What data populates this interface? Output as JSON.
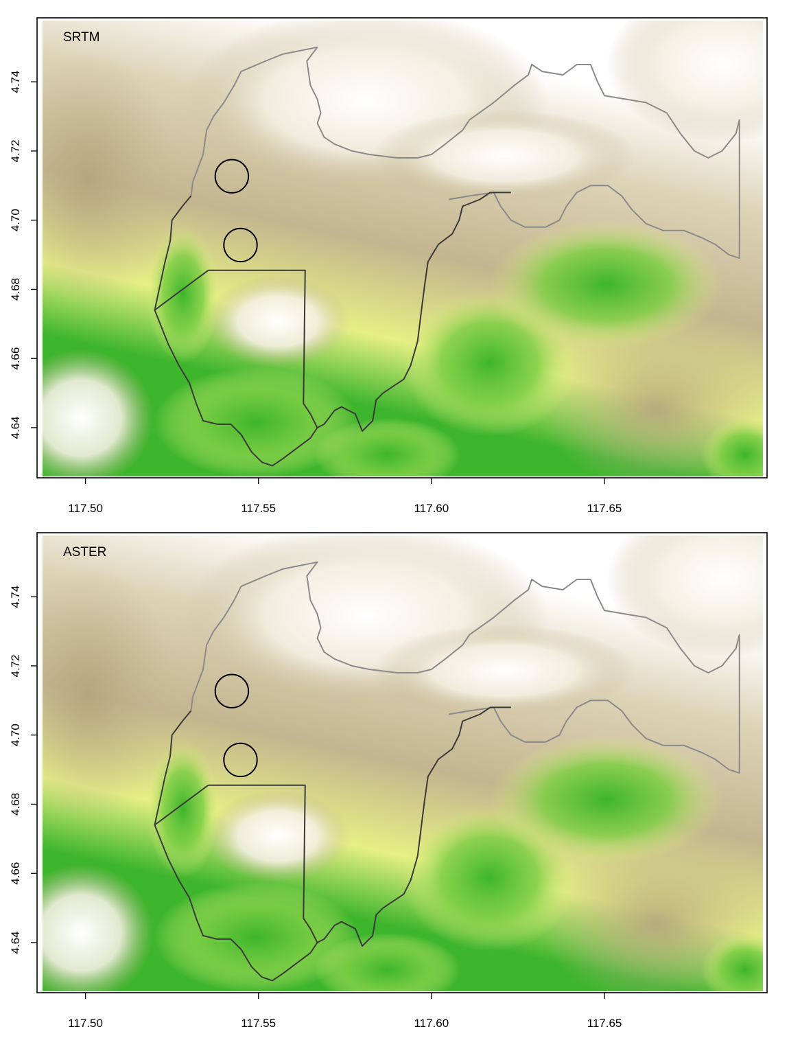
{
  "figure": {
    "panels": [
      {
        "id": "srtm",
        "label": "SRTM",
        "xlim": [
          117.486,
          117.697
        ],
        "ylim": [
          4.6255,
          4.7585
        ],
        "x_ticks": [
          {
            "value": 117.5,
            "label": "117.50"
          },
          {
            "value": 117.55,
            "label": "117.55"
          },
          {
            "value": 117.6,
            "label": "117.60"
          },
          {
            "value": 117.65,
            "label": "117.65"
          }
        ],
        "y_ticks": [
          {
            "value": 4.64,
            "label": "4.64"
          },
          {
            "value": 4.66,
            "label": "4.66"
          },
          {
            "value": 4.68,
            "label": "4.68"
          },
          {
            "value": 4.7,
            "label": "4.70"
          },
          {
            "value": 4.72,
            "label": "4.72"
          },
          {
            "value": 4.74,
            "label": "4.74"
          }
        ]
      },
      {
        "id": "aster",
        "label": "ASTER",
        "xlim": [
          117.486,
          117.697
        ],
        "ylim": [
          4.6255,
          4.7585
        ],
        "x_ticks": [
          {
            "value": 117.5,
            "label": "117.50"
          },
          {
            "value": 117.55,
            "label": "117.55"
          },
          {
            "value": 117.6,
            "label": "117.60"
          },
          {
            "value": 117.65,
            "label": "117.65"
          }
        ],
        "y_ticks": [
          {
            "value": 4.64,
            "label": "4.64"
          },
          {
            "value": 4.66,
            "label": "4.66"
          },
          {
            "value": 4.68,
            "label": "4.68"
          },
          {
            "value": 4.7,
            "label": "4.70"
          },
          {
            "value": 4.72,
            "label": "4.72"
          },
          {
            "value": 4.74,
            "label": "4.74"
          }
        ]
      }
    ],
    "colors": {
      "high": "#ffffff",
      "mid_high": "#c3b58f",
      "mid": "#e6ef84",
      "low": "#3db52c",
      "boundary_upper": "#8a8a8a",
      "boundary_lower": "#3a3a3a",
      "circle": "#000000"
    },
    "circles": [
      {
        "x": 117.5423,
        "y": 4.7127,
        "r": 0.0048
      },
      {
        "x": 117.5448,
        "y": 4.6928,
        "r": 0.0048
      }
    ],
    "boundary_upper": [
      [
        117.5305,
        4.707
      ],
      [
        117.531,
        4.711
      ],
      [
        117.534,
        4.719
      ],
      [
        117.535,
        4.726
      ],
      [
        117.537,
        4.73
      ],
      [
        117.54,
        4.734
      ],
      [
        117.543,
        4.739
      ],
      [
        117.545,
        4.743
      ],
      [
        117.552,
        4.746
      ],
      [
        117.557,
        4.748
      ],
      [
        117.567,
        4.75
      ],
      [
        117.564,
        4.746
      ],
      [
        117.565,
        4.739
      ],
      [
        117.567,
        4.735
      ],
      [
        117.568,
        4.731
      ],
      [
        117.567,
        4.728
      ],
      [
        117.569,
        4.724
      ],
      [
        117.572,
        4.722
      ],
      [
        117.577,
        4.72
      ],
      [
        117.582,
        4.719
      ],
      [
        117.59,
        4.718
      ],
      [
        117.596,
        4.718
      ],
      [
        117.6,
        4.719
      ],
      [
        117.604,
        4.722
      ],
      [
        117.609,
        4.726
      ],
      [
        117.611,
        4.729
      ],
      [
        117.618,
        4.734
      ],
      [
        117.624,
        4.739
      ],
      [
        117.628,
        4.742
      ],
      [
        117.629,
        4.745
      ],
      [
        117.632,
        4.743
      ],
      [
        117.638,
        4.742
      ],
      [
        117.642,
        4.745
      ],
      [
        117.646,
        4.745
      ],
      [
        117.648,
        4.74
      ],
      [
        117.65,
        4.736
      ],
      [
        117.656,
        4.735
      ],
      [
        117.662,
        4.734
      ],
      [
        117.668,
        4.731
      ],
      [
        117.672,
        4.725
      ],
      [
        117.676,
        4.72
      ],
      [
        117.68,
        4.718
      ],
      [
        117.684,
        4.72
      ],
      [
        117.688,
        4.725
      ],
      [
        117.689,
        4.729
      ],
      [
        117.689,
        4.711
      ],
      [
        117.689,
        4.689
      ],
      [
        117.686,
        4.69
      ],
      [
        117.682,
        4.693
      ],
      [
        117.678,
        4.695
      ],
      [
        117.673,
        4.697
      ],
      [
        117.667,
        4.697
      ],
      [
        117.662,
        4.699
      ],
      [
        117.658,
        4.703
      ],
      [
        117.655,
        4.707
      ],
      [
        117.651,
        4.71
      ],
      [
        117.646,
        4.71
      ],
      [
        117.642,
        4.708
      ],
      [
        117.639,
        4.704
      ],
      [
        117.637,
        4.7
      ],
      [
        117.633,
        4.698
      ],
      [
        117.627,
        4.698
      ],
      [
        117.623,
        4.7
      ],
      [
        117.62,
        4.704
      ],
      [
        117.618,
        4.708
      ],
      [
        117.611,
        4.707
      ],
      [
        117.605,
        4.706
      ]
    ],
    "boundary_lower": [
      [
        117.5355,
        4.6855
      ],
      [
        117.5635,
        4.6855
      ],
      [
        117.563,
        4.647
      ],
      [
        117.565,
        4.644
      ],
      [
        117.567,
        4.64
      ],
      [
        117.569,
        4.641
      ],
      [
        117.572,
        4.645
      ],
      [
        117.574,
        4.646
      ],
      [
        117.578,
        4.644
      ],
      [
        117.58,
        4.639
      ],
      [
        117.583,
        4.642
      ],
      [
        117.584,
        4.648
      ],
      [
        117.586,
        4.65
      ],
      [
        117.592,
        4.654
      ],
      [
        117.594,
        4.658
      ],
      [
        117.596,
        4.665
      ],
      [
        117.597,
        4.673
      ],
      [
        117.598,
        4.681
      ],
      [
        117.599,
        4.688
      ],
      [
        117.602,
        4.693
      ],
      [
        117.606,
        4.696
      ],
      [
        117.608,
        4.7
      ],
      [
        117.609,
        4.704
      ],
      [
        117.614,
        4.706
      ],
      [
        117.617,
        4.708
      ],
      [
        117.623,
        4.708
      ]
    ],
    "boundary_left": [
      [
        117.5305,
        4.707
      ],
      [
        117.528,
        4.704
      ],
      [
        117.525,
        4.7
      ],
      [
        117.5245,
        4.694
      ],
      [
        117.523,
        4.688
      ],
      [
        117.52,
        4.674
      ],
      [
        117.522,
        4.669
      ],
      [
        117.524,
        4.664
      ],
      [
        117.527,
        4.658
      ],
      [
        117.53,
        4.653
      ],
      [
        117.532,
        4.647
      ],
      [
        117.534,
        4.642
      ],
      [
        117.538,
        4.641
      ],
      [
        117.542,
        4.641
      ],
      [
        117.545,
        4.638
      ],
      [
        117.548,
        4.633
      ],
      [
        117.551,
        4.63
      ],
      [
        117.554,
        4.629
      ],
      [
        117.557,
        4.631
      ],
      [
        117.561,
        4.634
      ],
      [
        117.565,
        4.637
      ],
      [
        117.567,
        4.64
      ]
    ],
    "boundary_diag": [
      [
        117.52,
        4.674
      ],
      [
        117.5355,
        4.6855
      ]
    ]
  }
}
